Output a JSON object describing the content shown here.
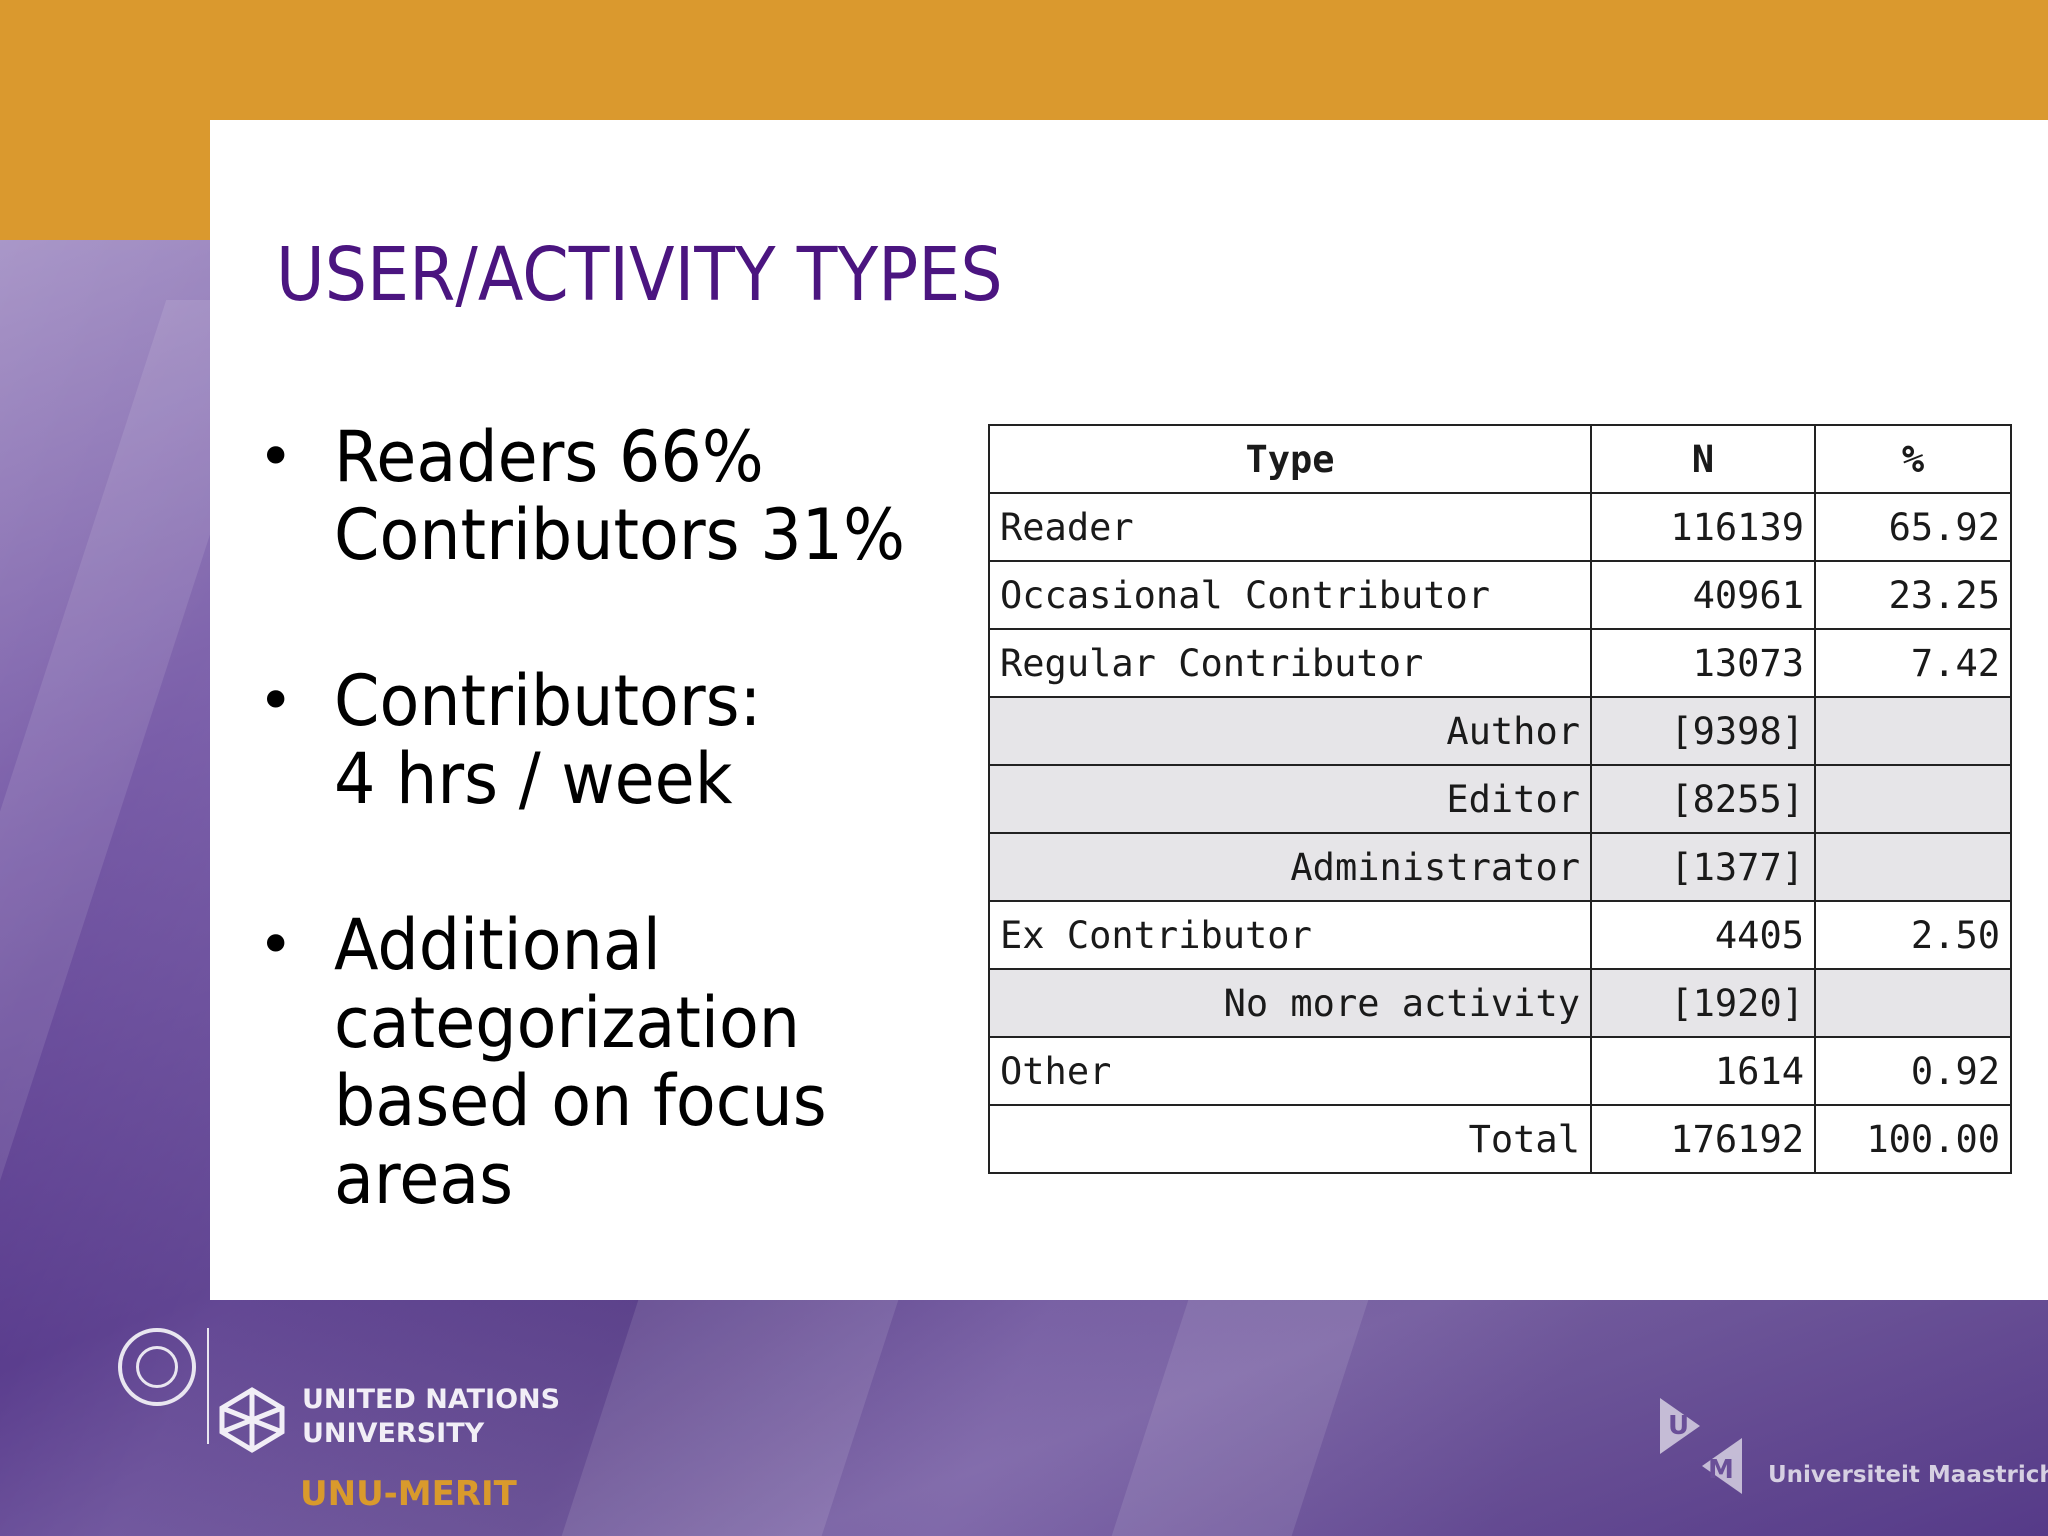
{
  "slide": {
    "title": "USER/ACTIVITY TYPES",
    "colors": {
      "accent_band": "#da992e",
      "title": "#4b1580",
      "background": "#6a4f98"
    }
  },
  "bullets": [
    {
      "text": "Readers 66%\nContributors 31%"
    },
    {
      "text": "Contributors:\n4 hrs / week"
    },
    {
      "text": "Additional\ncategorization\nbased on focus\nareas"
    }
  ],
  "table": {
    "headers": [
      "Type",
      "N",
      "%"
    ],
    "rows": [
      {
        "type": "Reader",
        "n": "116139",
        "pct": "65.92"
      },
      {
        "type": "Occasional Contributor",
        "n": "40961",
        "pct": "23.25"
      },
      {
        "type": "Regular Contributor",
        "n": "13073",
        "pct": "7.42"
      },
      {
        "type": "Author",
        "n": "[9398]",
        "pct": ""
      },
      {
        "type": "Editor",
        "n": "[8255]",
        "pct": ""
      },
      {
        "type": "Administrator",
        "n": "[1377]",
        "pct": ""
      },
      {
        "type": "Ex Contributor",
        "n": "4405",
        "pct": "2.50"
      },
      {
        "type": "No more activity",
        "n": "[1920]",
        "pct": ""
      },
      {
        "type": "Other",
        "n": "1614",
        "pct": "0.92"
      },
      {
        "type": "Total",
        "n": "176192",
        "pct": "100.00"
      }
    ]
  },
  "footer": {
    "unu_name": "UNITED NATIONS\nUNIVERSITY",
    "unu_merit": "UNU-MERIT",
    "um_letters": [
      "U",
      "M"
    ],
    "um_name": "Universiteit Maastricht",
    "icons": [
      "un-emblem-icon",
      "unu-logo-icon",
      "um-logo-icon"
    ]
  }
}
